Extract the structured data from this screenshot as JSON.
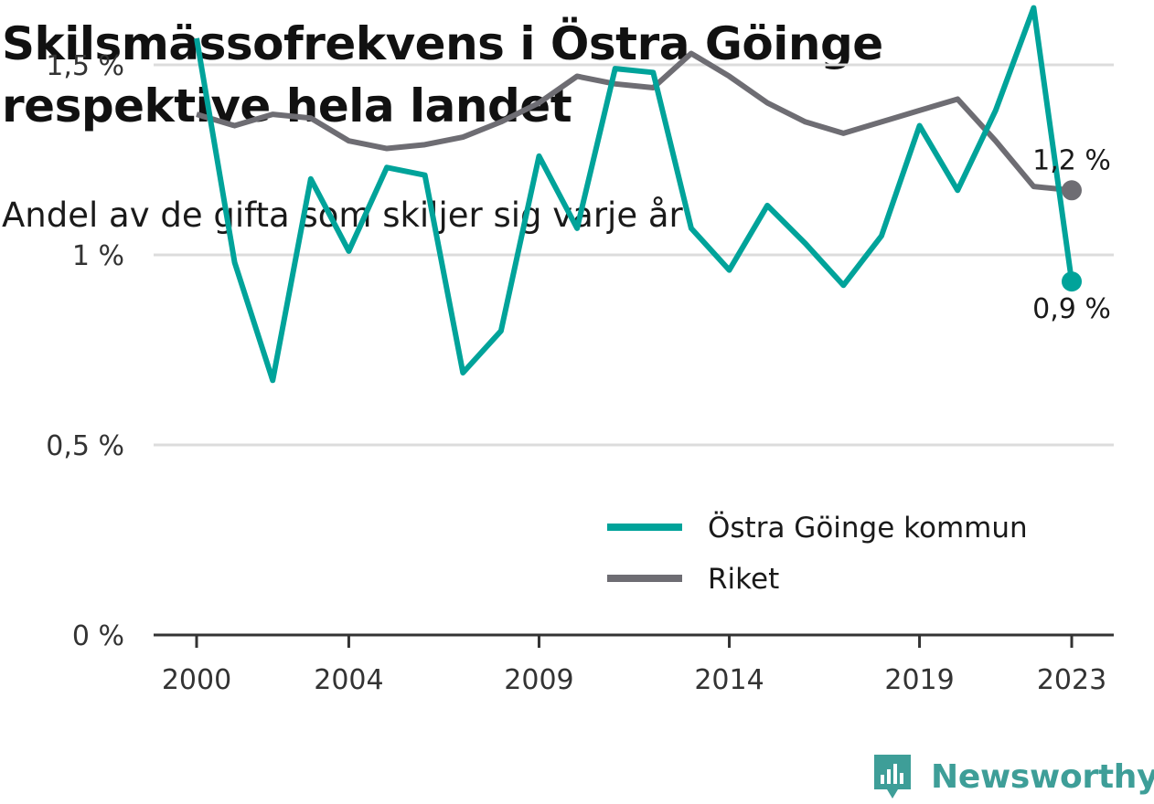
{
  "title": "Skilsmässofrekvens i Östra Göinge respektive hela landet",
  "subtitle": "Andel av de gifta som skiljer sig varje år",
  "brand": {
    "name": "Newsworthy",
    "icon": "newsworthy-logo-icon",
    "color": "#3e9e98"
  },
  "chart_data": {
    "type": "line",
    "x": [
      2000,
      2001,
      2002,
      2003,
      2004,
      2005,
      2006,
      2007,
      2008,
      2009,
      2010,
      2011,
      2012,
      2013,
      2014,
      2015,
      2016,
      2017,
      2018,
      2019,
      2020,
      2021,
      2022,
      2023
    ],
    "x_ticks": [
      2000,
      2004,
      2009,
      2014,
      2019,
      2023
    ],
    "x_tick_labels": [
      "2000",
      "2004",
      "2009",
      "2014",
      "2019",
      "2023"
    ],
    "y_ticks": [
      0,
      0.5,
      1,
      1.5
    ],
    "y_tick_labels": [
      "0 %",
      "0,5 %",
      "1 %",
      "1,5 %"
    ],
    "ylim": [
      0,
      1.65
    ],
    "grid": true,
    "legend_position": "bottom-right",
    "series": [
      {
        "name": "Östra Göinge kommun",
        "color": "#00a39a",
        "values": [
          1.57,
          0.98,
          0.67,
          1.2,
          1.01,
          1.23,
          1.21,
          0.69,
          0.8,
          1.26,
          1.07,
          1.49,
          1.48,
          1.07,
          0.96,
          1.13,
          1.03,
          0.92,
          1.05,
          1.34,
          1.17,
          1.38,
          1.65,
          0.93
        ],
        "end_label": "0,9 %"
      },
      {
        "name": "Riket",
        "color": "#6e6d73",
        "values": [
          1.37,
          1.34,
          1.37,
          1.36,
          1.3,
          1.28,
          1.29,
          1.31,
          1.35,
          1.4,
          1.47,
          1.45,
          1.44,
          1.53,
          1.47,
          1.4,
          1.35,
          1.32,
          1.35,
          1.38,
          1.41,
          1.3,
          1.18,
          1.17
        ],
        "end_label": "1,2 %"
      }
    ]
  }
}
